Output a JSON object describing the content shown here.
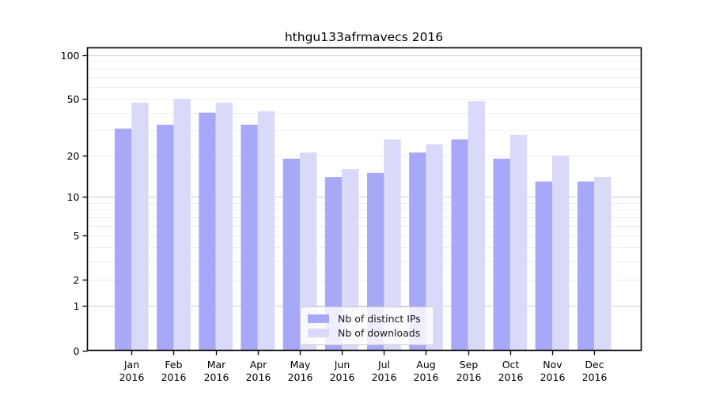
{
  "chart_data": {
    "type": "bar",
    "title": "hthgu133afrmavecs 2016",
    "categories": [
      "Jan",
      "Feb",
      "Mar",
      "Apr",
      "May",
      "Jun",
      "Jul",
      "Aug",
      "Sep",
      "Oct",
      "Nov",
      "Dec"
    ],
    "year": "2016",
    "series": [
      {
        "name": "Nb of distinct IPs",
        "color": "#a8a8f8",
        "values": [
          31,
          33,
          40,
          33,
          19,
          14,
          15,
          21,
          26,
          19,
          13,
          13
        ]
      },
      {
        "name": "Nb of downloads",
        "color": "#d9d9f9",
        "values": [
          47,
          50,
          47,
          41,
          21,
          16,
          26,
          24,
          48,
          28,
          20,
          14
        ]
      }
    ],
    "xlabel": "",
    "ylabel": "",
    "yscale": "log1p",
    "ylim": [
      0,
      112
    ],
    "yticks": [
      100,
      50,
      20,
      10,
      5,
      2,
      1,
      0
    ],
    "gridlines": {
      "minor": [
        2,
        3,
        4,
        5,
        6,
        7,
        8,
        9,
        20,
        30,
        40,
        50,
        60,
        70,
        80,
        90
      ],
      "major": [
        1,
        10,
        100
      ]
    },
    "grid": true,
    "legend_position": "lower-center-inside"
  },
  "colors": {
    "minor_grid": "#ededed",
    "major_grid": "#d9d9d9",
    "spine": "#000000",
    "tick_label": "#000000"
  }
}
